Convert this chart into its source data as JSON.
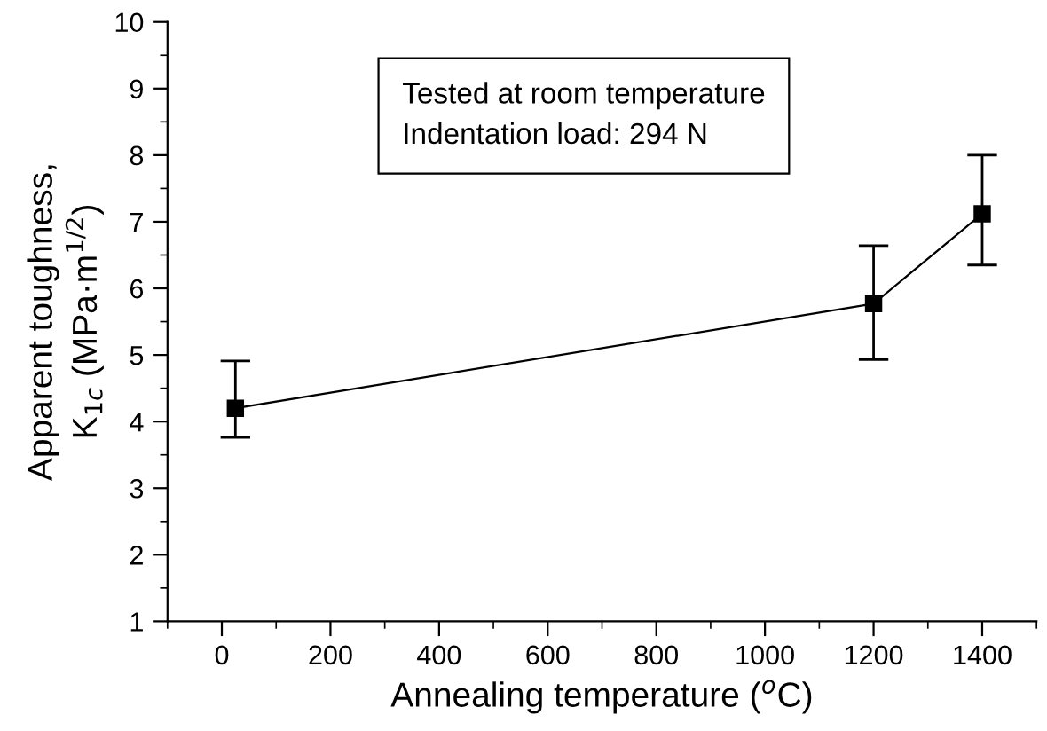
{
  "chart_data": {
    "type": "line",
    "xlabel": "Annealing temperature ($^{o}$C)",
    "ylabel": "Apparent toughness,\nK$_{1c}$ (MPa·m$^{1/2}$)",
    "annotations": [
      "Tested at room temperature\nIndentation load: 294 N"
    ],
    "x": [
      25,
      1200,
      1400
    ],
    "series": [
      {
        "color": "#000000",
        "values": [
          4.2,
          5.77,
          7.12
        ],
        "errors": [
          [
            3.76,
            4.91
          ],
          [
            4.93,
            6.64
          ],
          [
            6.35,
            8.0
          ]
        ]
      }
    ],
    "marker": "square",
    "line_style": "solid",
    "xlim": [
      -100,
      1500
    ],
    "xticks": [
      0,
      200,
      400,
      600,
      800,
      1000,
      1200,
      1400
    ],
    "ylim": [
      1,
      10
    ],
    "yticks": [
      1,
      2,
      3,
      4,
      5,
      6,
      7,
      8,
      9,
      10
    ],
    "grid": false,
    "legend": false
  }
}
